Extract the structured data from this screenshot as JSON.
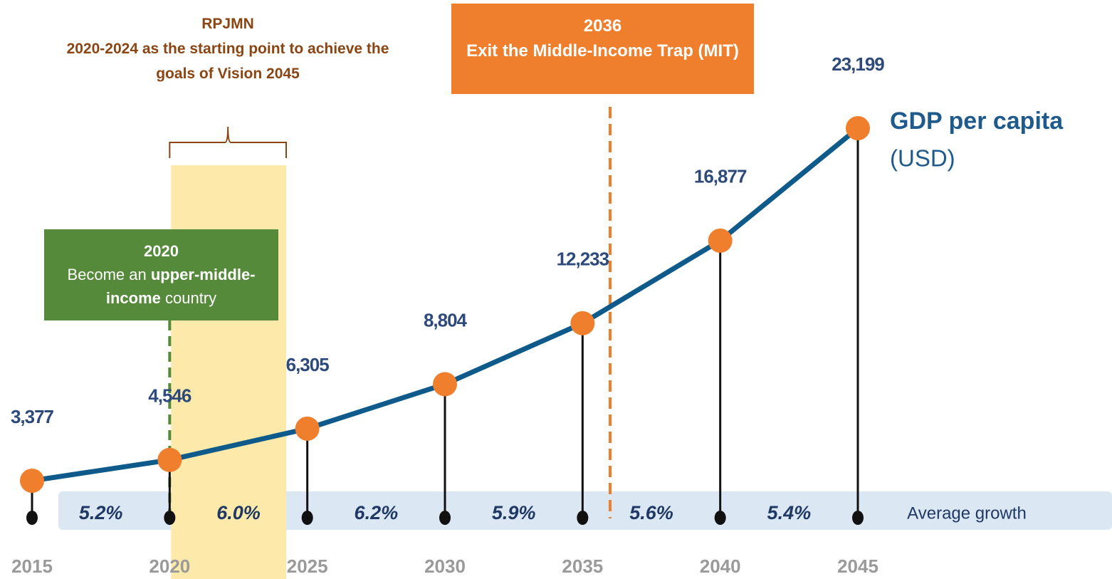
{
  "chart_data": {
    "type": "line",
    "title": "GDP per capita",
    "subtitle": "(USD)",
    "x": [
      2015,
      2020,
      2025,
      2030,
      2035,
      2040,
      2045
    ],
    "values": [
      3377,
      4546,
      6305,
      8804,
      12233,
      16877,
      23199
    ],
    "value_labels": [
      "3,377",
      "4,546",
      "6,305",
      "8,804",
      "12,233",
      "16,877",
      "23,199"
    ],
    "line_color": "#0e5a8a",
    "marker_color": "#f07f2d",
    "growth": {
      "label": "Average growth",
      "values": [
        5.2,
        6.0,
        6.2,
        5.9,
        5.6,
        5.4
      ],
      "value_labels": [
        "5.2%",
        "6.0%",
        "6.2%",
        "5.9%",
        "5.6%",
        "5.4%"
      ]
    },
    "highlight": {
      "span": [
        2020,
        2024
      ],
      "color": "#fde9a9",
      "title": "RPJMN",
      "text": "2020-2024 as the starting point to achieve the goals of Vision 2045"
    },
    "annotations": [
      {
        "x": 2036,
        "label": "2036",
        "text": "Exit the Middle-Income Trap (MIT)",
        "color": "#f07f2d"
      },
      {
        "x": 2020,
        "label": "2020",
        "color": "#558a3a",
        "text_parts": [
          {
            "text": "Become an "
          },
          {
            "text": "upper-middle-income",
            "bold": true
          },
          {
            "text": " country"
          }
        ]
      }
    ]
  }
}
